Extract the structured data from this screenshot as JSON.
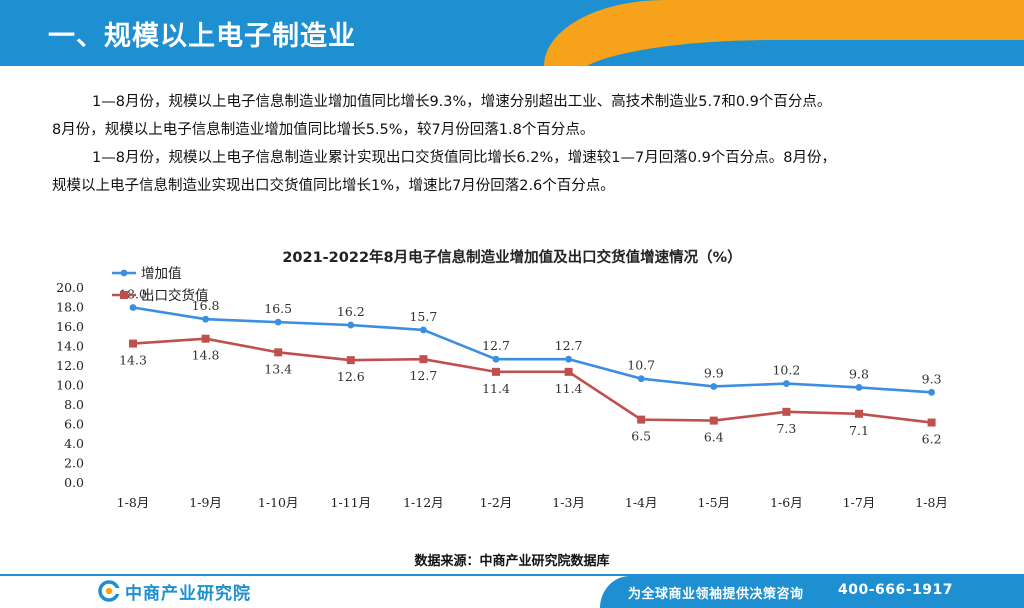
{
  "header": {
    "title": "一、规模以上电子制造业"
  },
  "intro": {
    "p1": "1—8月份，规模以上电子信息制造业增加值同比增长9.3%，增速分别超出工业、高技术制造业5.7和0.9个百分点。",
    "p1b": "8月份，规模以上电子信息制造业增加值同比增长5.5%，较7月份回落1.8个百分点。",
    "p2": "1—8月份，规模以上电子信息制造业累计实现出口交货值同比增长6.2%，增速较1—7月回落0.9个百分点。8月份，",
    "p2b": "规模以上电子信息制造业实现出口交货值同比增长1%，增速比7月份回落2.6个百分点。"
  },
  "chart_data": {
    "type": "line",
    "title": "2021-2022年8月电子信息制造业增加值及出口交货值增速情况（%）",
    "categories": [
      "1-8月",
      "1-9月",
      "1-10月",
      "1-11月",
      "1-12月",
      "1-2月",
      "1-3月",
      "1-4月",
      "1-5月",
      "1-6月",
      "1-7月",
      "1-8月"
    ],
    "series": [
      {
        "name": "增加值",
        "color": "#3c8fe0",
        "marker": "circle",
        "labels_position": "above",
        "values": [
          18.0,
          16.8,
          16.5,
          16.2,
          15.7,
          12.7,
          12.7,
          10.7,
          9.9,
          10.2,
          9.8,
          9.3
        ],
        "labels": [
          "18.0",
          "16.8",
          "16.5",
          "16.2",
          "15.7",
          "12.7",
          "12.7",
          "10.7",
          "9.9",
          "10.2",
          "9.8",
          "9.3"
        ]
      },
      {
        "name": "出口交货值",
        "color": "#c0504d",
        "marker": "square",
        "labels_position": "below",
        "values": [
          14.3,
          14.8,
          13.4,
          12.6,
          12.7,
          11.4,
          11.4,
          6.5,
          6.4,
          7.3,
          7.1,
          6.2
        ],
        "labels": [
          "14.3",
          "14.8",
          "13.4",
          "12.6",
          "12.7",
          "11.4",
          "11.4",
          "6.5",
          "6.4",
          "7.3",
          "7.1",
          "6.2"
        ]
      }
    ],
    "ylim": [
      0,
      20
    ],
    "yticks": [
      "0.0",
      "2.0",
      "4.0",
      "6.0",
      "8.0",
      "10.0",
      "12.0",
      "14.0",
      "16.0",
      "18.0",
      "20.0"
    ],
    "grid": false,
    "legend": "top-left"
  },
  "source": "数据来源：中商产业研究院数据库",
  "footer": {
    "logo_text": "中商产业研究院",
    "slogan": "为全球商业领袖提供决策咨询",
    "phone": "400-666-1917"
  },
  "colors": {
    "brand_blue": "#1e8fd0",
    "accent_orange": "#f7a21b"
  },
  "icons": {
    "logo": "zhongshang-logo-icon"
  }
}
